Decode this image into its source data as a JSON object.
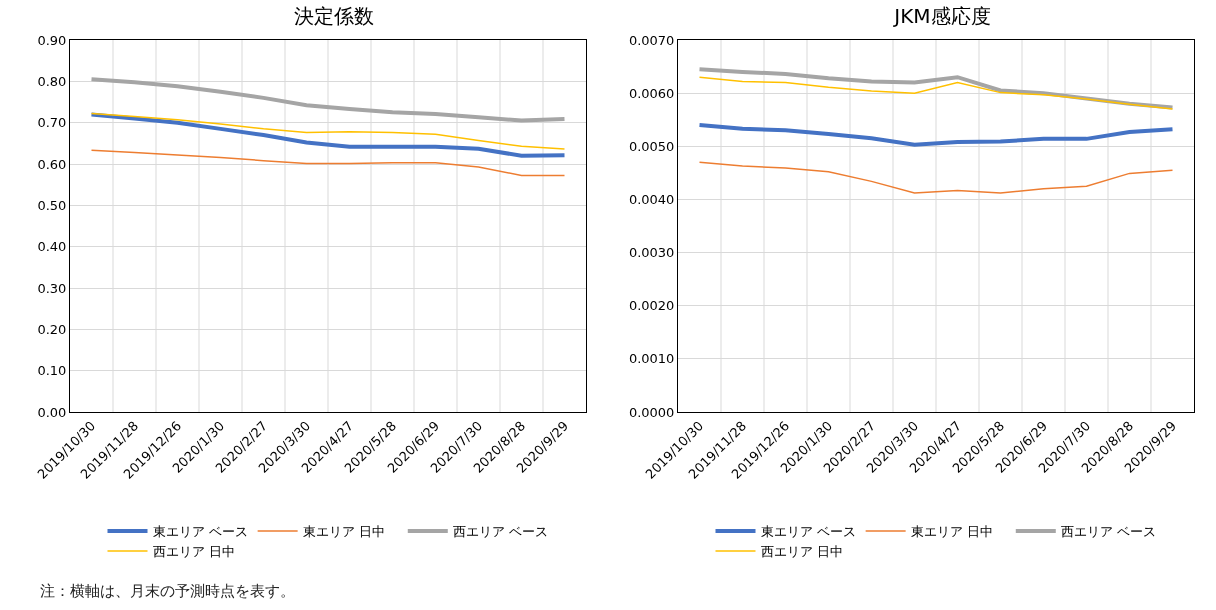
{
  "chart_data": [
    {
      "type": "line",
      "title": "決定係数",
      "categories": [
        "2019/10/30",
        "2019/11/28",
        "2019/12/26",
        "2020/1/30",
        "2020/2/27",
        "2020/3/30",
        "2020/4/27",
        "2020/5/28",
        "2020/6/29",
        "2020/7/30",
        "2020/8/28",
        "2020/9/29"
      ],
      "series": [
        {
          "name": "東エリア ベース",
          "color": "#4472c4",
          "values": [
            0.72,
            0.71,
            0.7,
            0.685,
            0.67,
            0.652,
            0.642,
            0.642,
            0.642,
            0.637,
            0.62,
            0.621
          ]
        },
        {
          "name": "東エリア 日中",
          "color": "#ed7d31",
          "values": [
            0.633,
            0.628,
            0.622,
            0.616,
            0.608,
            0.601,
            0.601,
            0.603,
            0.603,
            0.593,
            0.572,
            0.572
          ]
        },
        {
          "name": "西エリア ベース",
          "color": "#a5a5a5",
          "values": [
            0.805,
            0.798,
            0.788,
            0.775,
            0.76,
            0.742,
            0.733,
            0.725,
            0.721,
            0.713,
            0.705,
            0.709
          ]
        },
        {
          "name": "西エリア 日中",
          "color": "#ffc000",
          "values": [
            0.722,
            0.715,
            0.707,
            0.697,
            0.685,
            0.676,
            0.678,
            0.676,
            0.672,
            0.657,
            0.643,
            0.636
          ]
        }
      ],
      "ylim": [
        0,
        0.9
      ],
      "yticks": [
        {
          "value": 0,
          "label": "0.00"
        },
        {
          "value": 0.1,
          "label": "0.10"
        },
        {
          "value": 0.2,
          "label": "0.20"
        },
        {
          "value": 0.3,
          "label": "0.30"
        },
        {
          "value": 0.4,
          "label": "0.40"
        },
        {
          "value": 0.5,
          "label": "0.50"
        },
        {
          "value": 0.6,
          "label": "0.60"
        },
        {
          "value": 0.7,
          "label": "0.70"
        },
        {
          "value": 0.8,
          "label": "0.80"
        },
        {
          "value": 0.9,
          "label": "0.90"
        }
      ],
      "grid": true,
      "legend": "bottom",
      "marker": "none",
      "line_style": "solid",
      "annotations": [
        "注：横軸は、月末の予測時点を表す。"
      ]
    },
    {
      "type": "line",
      "title": "JKM感応度",
      "categories": [
        "2019/10/30",
        "2019/11/28",
        "2019/12/26",
        "2020/1/30",
        "2020/2/27",
        "2020/3/30",
        "2020/4/27",
        "2020/5/28",
        "2020/6/29",
        "2020/7/30",
        "2020/8/28",
        "2020/9/29"
      ],
      "series": [
        {
          "name": "東エリア ベース",
          "color": "#4472c4",
          "values": [
            0.0054,
            0.00533,
            0.0053,
            0.00523,
            0.00515,
            0.00503,
            0.00508,
            0.00509,
            0.00514,
            0.00514,
            0.00527,
            0.00532
          ]
        },
        {
          "name": "東エリア 日中",
          "color": "#ed7d31",
          "values": [
            0.0047,
            0.00463,
            0.00459,
            0.00452,
            0.00434,
            0.00412,
            0.00417,
            0.00412,
            0.0042,
            0.00425,
            0.00449,
            0.00455
          ]
        },
        {
          "name": "西エリア ベース",
          "color": "#a5a5a5",
          "values": [
            0.00645,
            0.0064,
            0.00636,
            0.00628,
            0.00622,
            0.0062,
            0.0063,
            0.00605,
            0.006,
            0.0059,
            0.0058,
            0.00573
          ]
        },
        {
          "name": "西エリア 日中",
          "color": "#ffc000",
          "values": [
            0.0063,
            0.00622,
            0.0062,
            0.00611,
            0.00604,
            0.006,
            0.0062,
            0.00601,
            0.00597,
            0.00589,
            0.00579,
            0.0057
          ]
        }
      ],
      "ylim": [
        0,
        0.007
      ],
      "yticks": [
        {
          "value": 0,
          "label": "0.0000"
        },
        {
          "value": 0.001,
          "label": "0.0010"
        },
        {
          "value": 0.002,
          "label": "0.0020"
        },
        {
          "value": 0.003,
          "label": "0.0030"
        },
        {
          "value": 0.004,
          "label": "0.0040"
        },
        {
          "value": 0.005,
          "label": "0.0050"
        },
        {
          "value": 0.006,
          "label": "0.0060"
        },
        {
          "value": 0.007,
          "label": "0.0070"
        }
      ],
      "grid": true,
      "legend": "bottom",
      "marker": "none",
      "line_style": "solid"
    }
  ]
}
